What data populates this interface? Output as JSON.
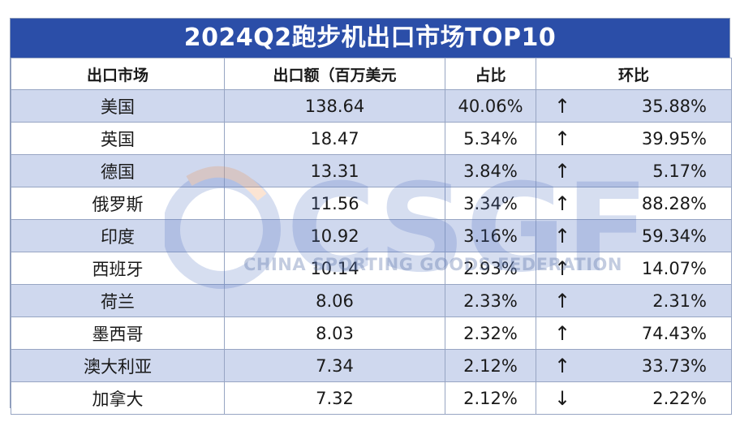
{
  "title": "2024Q2跑步机出口市场TOP10",
  "columns": [
    "出口市场",
    "出口额（百万美元",
    "占比",
    "环比"
  ],
  "rows": [
    {
      "market": "美国",
      "amount": "138.64",
      "share": "40.06%",
      "dir": "up",
      "change": "35.88%"
    },
    {
      "market": "英国",
      "amount": "18.47",
      "share": "5.34%",
      "dir": "up",
      "change": "39.95%"
    },
    {
      "market": "德国",
      "amount": "13.31",
      "share": "3.84%",
      "dir": "up",
      "change": "5.17%"
    },
    {
      "market": "俄罗斯",
      "amount": "11.56",
      "share": "3.34%",
      "dir": "up",
      "change": "88.28%"
    },
    {
      "market": "印度",
      "amount": "10.92",
      "share": "3.16%",
      "dir": "up",
      "change": "59.34%"
    },
    {
      "market": "西班牙",
      "amount": "10.14",
      "share": "2.93%",
      "dir": "up",
      "change": "14.07%"
    },
    {
      "market": "荷兰",
      "amount": "8.06",
      "share": "2.33%",
      "dir": "up",
      "change": "2.31%"
    },
    {
      "market": "墨西哥",
      "amount": "8.03",
      "share": "2.32%",
      "dir": "up",
      "change": "74.43%"
    },
    {
      "market": "澳大利亚",
      "amount": "7.34",
      "share": "2.12%",
      "dir": "up",
      "change": "33.73%"
    },
    {
      "market": "加拿大",
      "amount": "7.32",
      "share": "2.12%",
      "dir": "down",
      "change": "2.22%"
    }
  ],
  "watermark": {
    "logo": "CSGF",
    "text": "CHINA SPORTING GOODS FEDERATION",
    "logo_color": "#4a6cc0",
    "accent_color": "#f08a3c"
  },
  "colors": {
    "header": "#2b4ea8",
    "stripe": "#cfd8ee",
    "border": "#97a5c3"
  }
}
